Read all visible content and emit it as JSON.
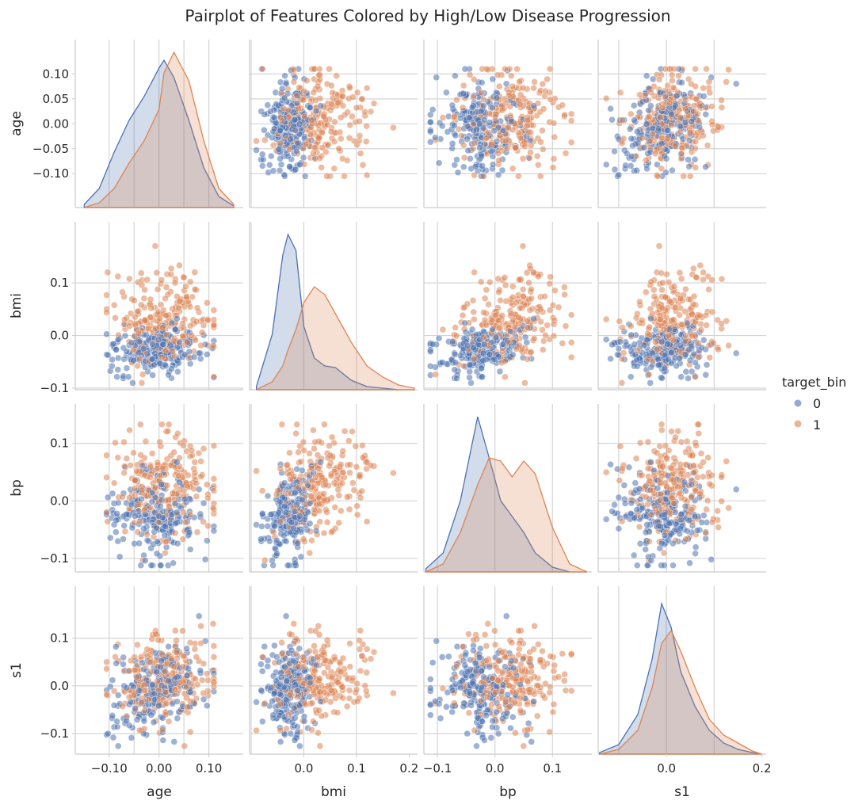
{
  "chart_data": {
    "type": "pairplot",
    "title": "Pairplot of Features Colored by High/Low Disease Progression",
    "variables": [
      "age",
      "bmi",
      "bp",
      "s1"
    ],
    "ranges": {
      "age": [
        -0.168,
        0.169
      ],
      "bmi": [
        -0.103,
        0.216
      ],
      "bp": [
        -0.1235,
        0.1685
      ],
      "s1": [
        -0.143,
        0.209
      ]
    },
    "ticks": {
      "age": [
        -0.1,
        -0.05,
        0.0,
        0.05,
        0.1
      ],
      "bmi": [
        -0.1,
        0.0,
        0.1
      ],
      "bp": [
        -0.1,
        0.0,
        0.1
      ],
      "s1": [
        -0.1,
        0.0,
        0.1
      ]
    },
    "xticks": {
      "age": [
        -0.1,
        0.0,
        0.1
      ],
      "bmi": [
        0.0,
        0.1,
        0.2
      ],
      "bp": [
        -0.1,
        0.0,
        0.1
      ],
      "s1": [
        0.0,
        0.2
      ]
    },
    "hue": "target_bin",
    "legend": {
      "title": "target_bin",
      "position": "right",
      "entries": [
        {
          "label": "0",
          "color": "#4c72b0"
        },
        {
          "label": "1",
          "color": "#dd8452"
        }
      ]
    },
    "grid": true,
    "kde": {
      "age": {
        "x": [
          -0.15,
          -0.12,
          -0.09,
          -0.06,
          -0.03,
          0.0,
          0.01,
          0.03,
          0.06,
          0.09,
          0.12,
          0.15
        ],
        "group0": [
          0.02,
          0.12,
          0.35,
          0.55,
          0.7,
          0.88,
          0.93,
          0.82,
          0.55,
          0.25,
          0.07,
          0.01
        ],
        "group1": [
          0.0,
          0.03,
          0.12,
          0.28,
          0.42,
          0.62,
          0.85,
          0.98,
          0.8,
          0.42,
          0.12,
          0.02
        ]
      },
      "bmi": {
        "x": [
          -0.09,
          -0.06,
          -0.04,
          -0.03,
          -0.015,
          0.0,
          0.02,
          0.04,
          0.06,
          0.09,
          0.12,
          0.15,
          0.18,
          0.21
        ],
        "group0": [
          0.02,
          0.35,
          0.85,
          0.98,
          0.88,
          0.4,
          0.2,
          0.15,
          0.14,
          0.06,
          0.02,
          0.01,
          0.0,
          0.0
        ],
        "group1": [
          0.0,
          0.05,
          0.15,
          0.25,
          0.38,
          0.55,
          0.65,
          0.6,
          0.48,
          0.3,
          0.15,
          0.08,
          0.03,
          0.01
        ]
      },
      "bp": {
        "x": [
          -0.12,
          -0.09,
          -0.06,
          -0.03,
          -0.01,
          0.01,
          0.03,
          0.05,
          0.07,
          0.1,
          0.13,
          0.16
        ],
        "group0": [
          0.02,
          0.12,
          0.45,
          0.98,
          0.72,
          0.45,
          0.35,
          0.25,
          0.12,
          0.03,
          0.0,
          0.0
        ],
        "group1": [
          0.0,
          0.05,
          0.25,
          0.55,
          0.72,
          0.7,
          0.6,
          0.7,
          0.62,
          0.28,
          0.05,
          0.0
        ]
      },
      "s1": {
        "x": [
          -0.14,
          -0.1,
          -0.06,
          -0.03,
          -0.01,
          0.01,
          0.03,
          0.06,
          0.09,
          0.12,
          0.15,
          0.18,
          0.2
        ],
        "group0": [
          0.01,
          0.06,
          0.25,
          0.6,
          0.95,
          0.8,
          0.52,
          0.3,
          0.15,
          0.07,
          0.03,
          0.01,
          0.0
        ],
        "group1": [
          0.0,
          0.03,
          0.15,
          0.42,
          0.7,
          0.78,
          0.65,
          0.42,
          0.22,
          0.12,
          0.07,
          0.02,
          0.0
        ]
      }
    }
  }
}
